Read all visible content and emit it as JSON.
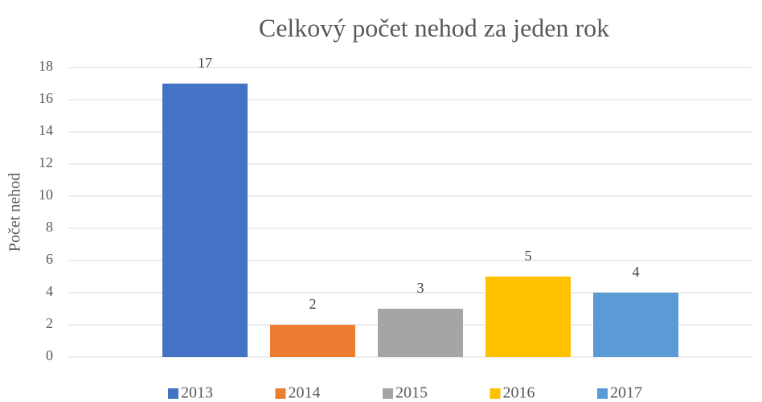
{
  "chart_data": {
    "type": "bar",
    "title": "Celkový počet nehod za jeden rok",
    "ylabel": "Počet nehod",
    "categories": [
      null
    ],
    "series": [
      {
        "name": "2013",
        "color": "#4472c4",
        "values": [
          17
        ]
      },
      {
        "name": "2014",
        "color": "#ed7d31",
        "values": [
          2
        ]
      },
      {
        "name": "2015",
        "color": "#a5a5a5",
        "values": [
          3
        ]
      },
      {
        "name": "2016",
        "color": "#ffc000",
        "values": [
          5
        ]
      },
      {
        "name": "2017",
        "color": "#5b9bd5",
        "values": [
          4
        ]
      }
    ],
    "ylim": [
      0,
      18
    ],
    "yticks": [
      0,
      2,
      4,
      6,
      8,
      10,
      12,
      14,
      16,
      18
    ],
    "grid": true,
    "legend": "bottom",
    "data_labels": true
  }
}
